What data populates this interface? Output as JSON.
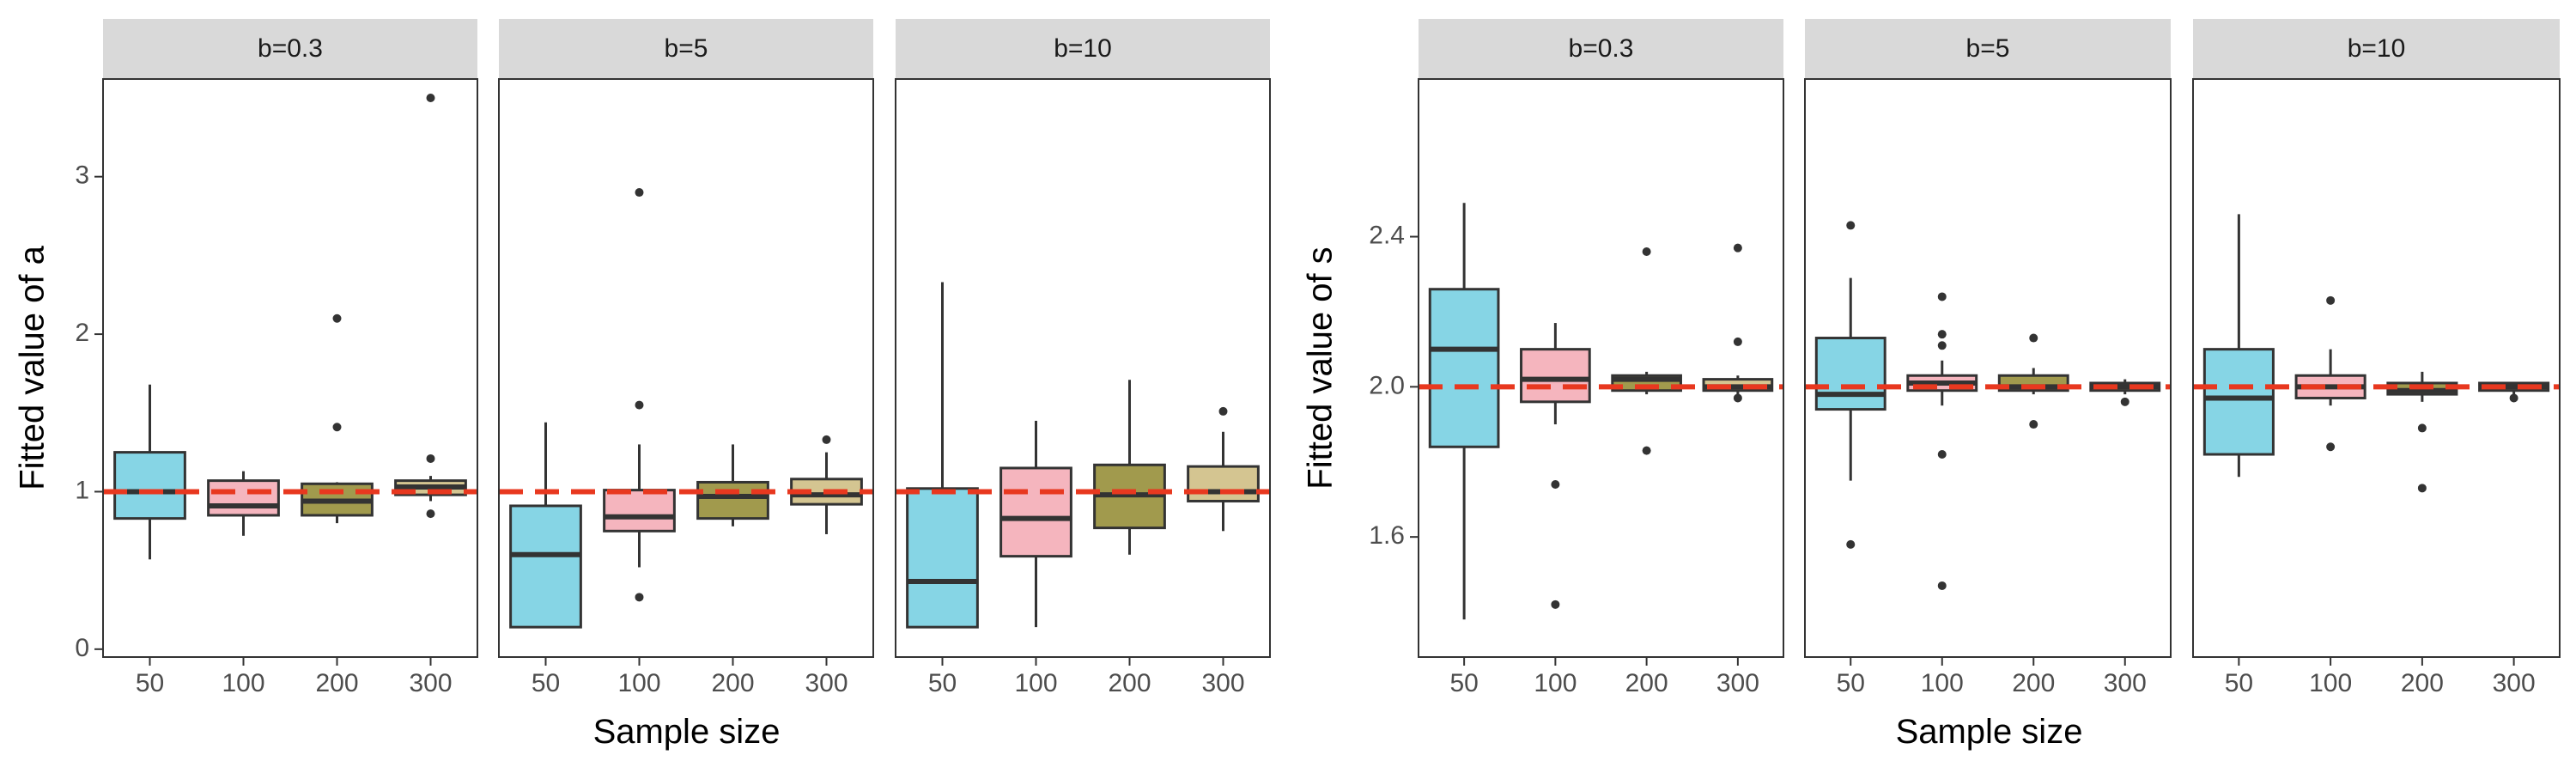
{
  "chart_data": [
    {
      "type": "boxplot",
      "ylabel": "Fitted value of a",
      "xlabel": "Sample size",
      "categories": [
        "50",
        "100",
        "200",
        "300"
      ],
      "colors": [
        "#86D5E5",
        "#F5B5BE",
        "#A19A4D",
        "#D4C591"
      ],
      "reference_line": 1,
      "ylim": [
        -0.05,
        3.62
      ],
      "yticks": [
        0,
        1,
        2,
        3
      ],
      "ytick_labels": [
        "0",
        "1",
        "2",
        "3"
      ],
      "panels": [
        {
          "title": "b=0.3",
          "boxes": [
            {
              "category": "50",
              "q1": 0.83,
              "median": 1.0,
              "q3": 1.25,
              "low": 0.57,
              "high": 1.68,
              "outliers": []
            },
            {
              "category": "100",
              "q1": 0.85,
              "median": 0.91,
              "q3": 1.07,
              "low": 0.72,
              "high": 1.13,
              "outliers": []
            },
            {
              "category": "200",
              "q1": 0.85,
              "median": 0.94,
              "q3": 1.05,
              "low": 0.8,
              "high": 1.06,
              "outliers": [
                2.1,
                1.41
              ]
            },
            {
              "category": "300",
              "q1": 0.98,
              "median": 1.03,
              "q3": 1.07,
              "low": 0.94,
              "high": 1.1,
              "outliers": [
                3.5,
                1.21,
                0.86
              ]
            }
          ]
        },
        {
          "title": "b=5",
          "boxes": [
            {
              "category": "50",
              "q1": 0.14,
              "median": 0.6,
              "q3": 0.91,
              "low": 0.14,
              "high": 1.44,
              "outliers": []
            },
            {
              "category": "100",
              "q1": 0.75,
              "median": 0.84,
              "q3": 1.01,
              "low": 0.52,
              "high": 1.3,
              "outliers": [
                2.9,
                1.55,
                0.33
              ]
            },
            {
              "category": "200",
              "q1": 0.83,
              "median": 0.97,
              "q3": 1.06,
              "low": 0.78,
              "high": 1.3,
              "outliers": []
            },
            {
              "category": "300",
              "q1": 0.92,
              "median": 0.98,
              "q3": 1.08,
              "low": 0.73,
              "high": 1.25,
              "outliers": [
                1.33
              ]
            }
          ]
        },
        {
          "title": "b=10",
          "boxes": [
            {
              "category": "50",
              "q1": 0.14,
              "median": 0.43,
              "q3": 1.02,
              "low": 0.14,
              "high": 2.33,
              "outliers": []
            },
            {
              "category": "100",
              "q1": 0.59,
              "median": 0.83,
              "q3": 1.15,
              "low": 0.14,
              "high": 1.45,
              "outliers": []
            },
            {
              "category": "200",
              "q1": 0.77,
              "median": 0.98,
              "q3": 1.17,
              "low": 0.6,
              "high": 1.71,
              "outliers": []
            },
            {
              "category": "300",
              "q1": 0.94,
              "median": 1.0,
              "q3": 1.16,
              "low": 0.75,
              "high": 1.38,
              "outliers": [
                1.51
              ]
            }
          ]
        }
      ]
    },
    {
      "type": "boxplot",
      "ylabel": "Fitted value of s",
      "xlabel": "Sample size",
      "categories": [
        "50",
        "100",
        "200",
        "300"
      ],
      "colors": [
        "#86D5E5",
        "#F5B5BE",
        "#A19A4D",
        "#D4C591"
      ],
      "reference_line": 2.0,
      "ylim": [
        1.28,
        2.82
      ],
      "yticks": [
        1.6,
        2.0,
        2.4
      ],
      "ytick_labels": [
        "1.6",
        "2.0",
        "2.4"
      ],
      "panels": [
        {
          "title": "b=0.3",
          "boxes": [
            {
              "category": "50",
              "q1": 1.84,
              "median": 2.1,
              "q3": 2.26,
              "low": 1.38,
              "high": 2.49,
              "outliers": []
            },
            {
              "category": "100",
              "q1": 1.96,
              "median": 2.02,
              "q3": 2.1,
              "low": 1.9,
              "high": 2.17,
              "outliers": [
                1.74,
                1.42
              ]
            },
            {
              "category": "200",
              "q1": 1.99,
              "median": 2.02,
              "q3": 2.03,
              "low": 1.98,
              "high": 2.04,
              "outliers": [
                2.36,
                1.83
              ]
            },
            {
              "category": "300",
              "q1": 1.99,
              "median": 2.0,
              "q3": 2.02,
              "low": 1.98,
              "high": 2.03,
              "outliers": [
                2.37,
                2.12,
                1.97
              ]
            }
          ]
        },
        {
          "title": "b=5",
          "boxes": [
            {
              "category": "50",
              "q1": 1.94,
              "median": 1.98,
              "q3": 2.13,
              "low": 1.75,
              "high": 2.29,
              "outliers": [
                2.43,
                1.58
              ]
            },
            {
              "category": "100",
              "q1": 1.99,
              "median": 2.01,
              "q3": 2.03,
              "low": 1.95,
              "high": 2.07,
              "outliers": [
                2.24,
                2.14,
                2.11,
                1.82,
                1.47
              ]
            },
            {
              "category": "200",
              "q1": 1.99,
              "median": 2.0,
              "q3": 2.03,
              "low": 1.98,
              "high": 2.05,
              "outliers": [
                2.13,
                1.9
              ]
            },
            {
              "category": "300",
              "q1": 1.99,
              "median": 2.0,
              "q3": 2.01,
              "low": 1.98,
              "high": 2.02,
              "outliers": [
                1.96
              ]
            }
          ]
        },
        {
          "title": "b=10",
          "boxes": [
            {
              "category": "50",
              "q1": 1.82,
              "median": 1.97,
              "q3": 2.1,
              "low": 1.76,
              "high": 2.46,
              "outliers": []
            },
            {
              "category": "100",
              "q1": 1.97,
              "median": 2.0,
              "q3": 2.03,
              "low": 1.95,
              "high": 2.1,
              "outliers": [
                2.23,
                1.84
              ]
            },
            {
              "category": "200",
              "q1": 1.98,
              "median": 1.99,
              "q3": 2.01,
              "low": 1.96,
              "high": 2.04,
              "outliers": [
                1.89,
                1.73
              ]
            },
            {
              "category": "300",
              "q1": 1.99,
              "median": 2.0,
              "q3": 2.01,
              "low": 1.98,
              "high": 2.01,
              "outliers": [
                1.97
              ]
            }
          ]
        }
      ]
    }
  ]
}
